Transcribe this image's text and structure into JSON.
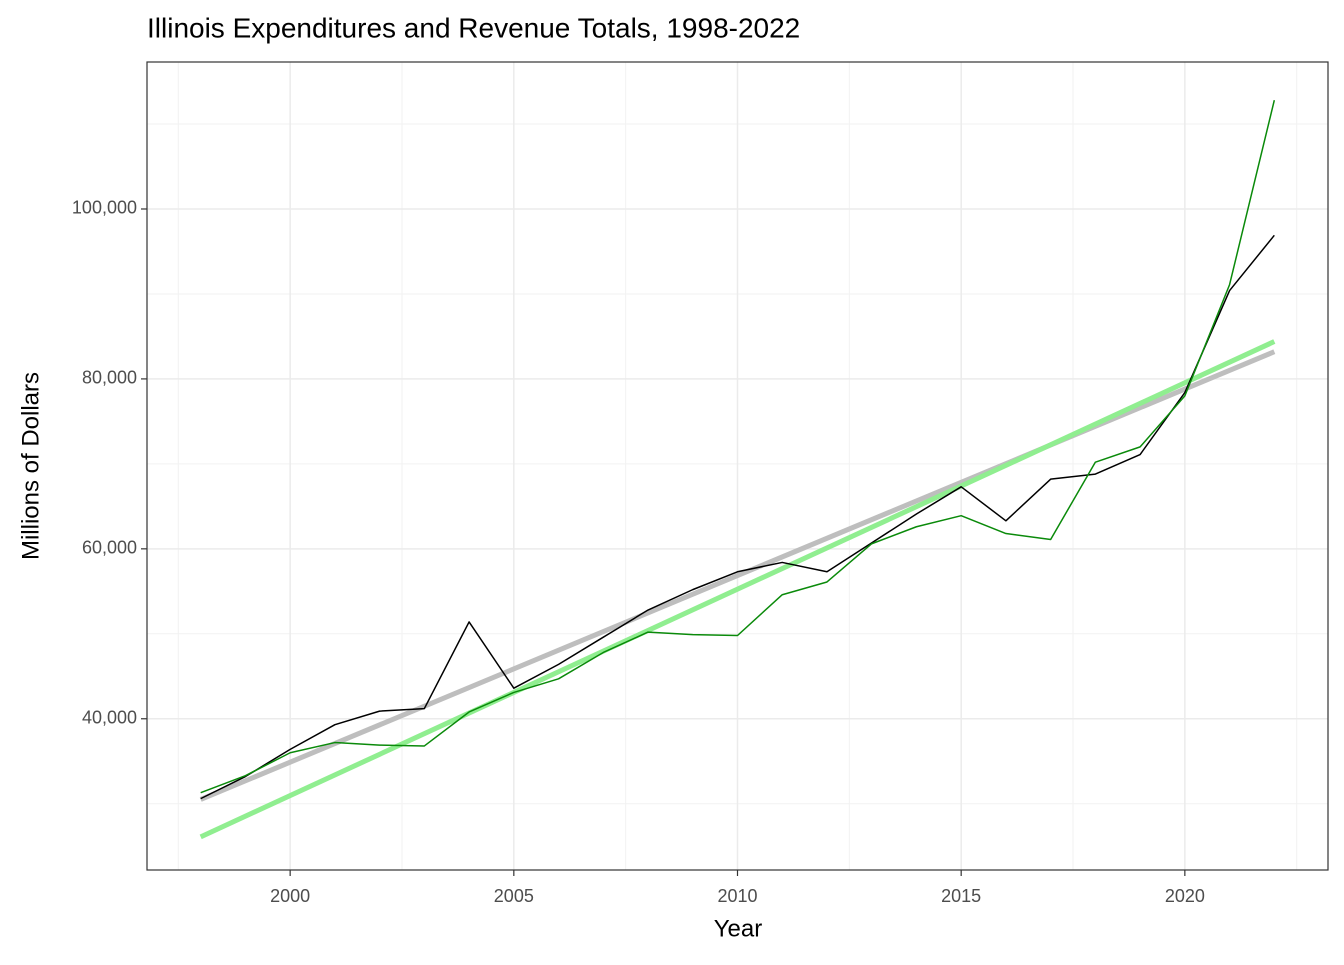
{
  "chart_data": {
    "type": "line",
    "title": "Illinois Expenditures and Revenue Totals, 1998-2022",
    "x_label": "Year",
    "y_label": "Millions of Dollars",
    "series": [
      {
        "color": "#bebebe",
        "width": 5,
        "x": [
          1998,
          2022
        ],
        "values": [
          30500,
          83200
        ]
      },
      {
        "color": "#90ee90",
        "width": 5,
        "x": [
          1998,
          2022
        ],
        "values": [
          26100,
          84400
        ]
      },
      {
        "color": "#000000",
        "width": 1.5,
        "x": [
          1998,
          1999,
          2000,
          2001,
          2002,
          2003,
          2004,
          2005,
          2006,
          2007,
          2008,
          2009,
          2010,
          2011,
          2012,
          2013,
          2014,
          2015,
          2016,
          2017,
          2018,
          2019,
          2020,
          2021,
          2022
        ],
        "values": [
          30600,
          33200,
          36400,
          39300,
          40900,
          41200,
          51400,
          43600,
          46400,
          49600,
          52800,
          55200,
          57300,
          58400,
          57300,
          60700,
          64100,
          67300,
          63300,
          68200,
          68800,
          71100,
          78400,
          90400,
          96900
        ]
      },
      {
        "color": "#0a8a0a",
        "width": 1.5,
        "x": [
          1998,
          1999,
          2000,
          2001,
          2002,
          2003,
          2004,
          2005,
          2006,
          2007,
          2008,
          2009,
          2010,
          2011,
          2012,
          2013,
          2014,
          2015,
          2016,
          2017,
          2018,
          2019,
          2020,
          2021,
          2022
        ],
        "values": [
          31300,
          33300,
          36000,
          37200,
          36900,
          36800,
          40800,
          43100,
          44700,
          47800,
          50200,
          49900,
          49800,
          54600,
          56100,
          60600,
          62600,
          63900,
          61800,
          61100,
          70200,
          72000,
          78000,
          91100,
          112800
        ]
      }
    ],
    "xlim": [
      1996.8,
      2023.2
    ],
    "xticks": [
      2000,
      2005,
      2010,
      2015,
      2020
    ],
    "ylim": [
      22200,
      117300
    ],
    "yticks": [
      {
        "value": 40000,
        "label": "40,000"
      },
      {
        "value": 60000,
        "label": "60,000"
      },
      {
        "value": 80000,
        "label": "80,000"
      },
      {
        "value": 100000,
        "label": "100,000"
      }
    ],
    "grid": true
  }
}
